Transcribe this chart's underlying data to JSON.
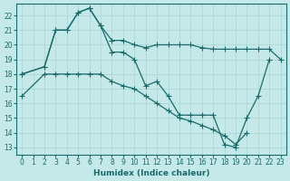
{
  "xlabel": "Humidex (Indice chaleur)",
  "background_color": "#c5e8e8",
  "line_color": "#1a6b6b",
  "grid_color": "#a8d4d4",
  "xlim": [
    -0.5,
    23.5
  ],
  "ylim": [
    12.5,
    22.8
  ],
  "yticks": [
    13,
    14,
    15,
    16,
    17,
    18,
    19,
    20,
    21,
    22
  ],
  "xticks": [
    0,
    1,
    2,
    3,
    4,
    5,
    6,
    7,
    8,
    9,
    10,
    11,
    12,
    13,
    14,
    15,
    16,
    17,
    18,
    19,
    20,
    21,
    22,
    23
  ],
  "line1_x": [
    0,
    2,
    3,
    4,
    5,
    6,
    7,
    8,
    9,
    10,
    11,
    12,
    13,
    14,
    15,
    16,
    17,
    18,
    19,
    20,
    21,
    22,
    23
  ],
  "line1_y": [
    18.0,
    18.5,
    21.0,
    21.0,
    22.2,
    22.5,
    21.3,
    20.3,
    20.3,
    20.0,
    19.8,
    20.0,
    20.0,
    20.0,
    20.0,
    19.8,
    19.7,
    19.7,
    19.7,
    19.7,
    19.7,
    19.7,
    19.0
  ],
  "line2_x": [
    0,
    2,
    3,
    4,
    5,
    6,
    7,
    8,
    9,
    10,
    11,
    12,
    13,
    14,
    15,
    16,
    17,
    18,
    19,
    20,
    21,
    22
  ],
  "line2_y": [
    18.0,
    18.5,
    21.0,
    21.0,
    22.2,
    22.5,
    21.3,
    19.5,
    19.5,
    19.0,
    17.2,
    17.5,
    16.5,
    15.2,
    15.2,
    15.2,
    15.2,
    13.2,
    13.0,
    15.0,
    16.5,
    19.0
  ],
  "line3_x": [
    0,
    2,
    3,
    4,
    5,
    6,
    7,
    8,
    9,
    10,
    11,
    12,
    13,
    14,
    15,
    16,
    17,
    18,
    19,
    20
  ],
  "line3_y": [
    16.5,
    18.0,
    18.0,
    18.0,
    18.0,
    18.0,
    18.0,
    17.5,
    17.2,
    17.0,
    16.5,
    16.0,
    15.5,
    15.0,
    14.8,
    14.5,
    14.2,
    13.8,
    13.2,
    14.0
  ]
}
